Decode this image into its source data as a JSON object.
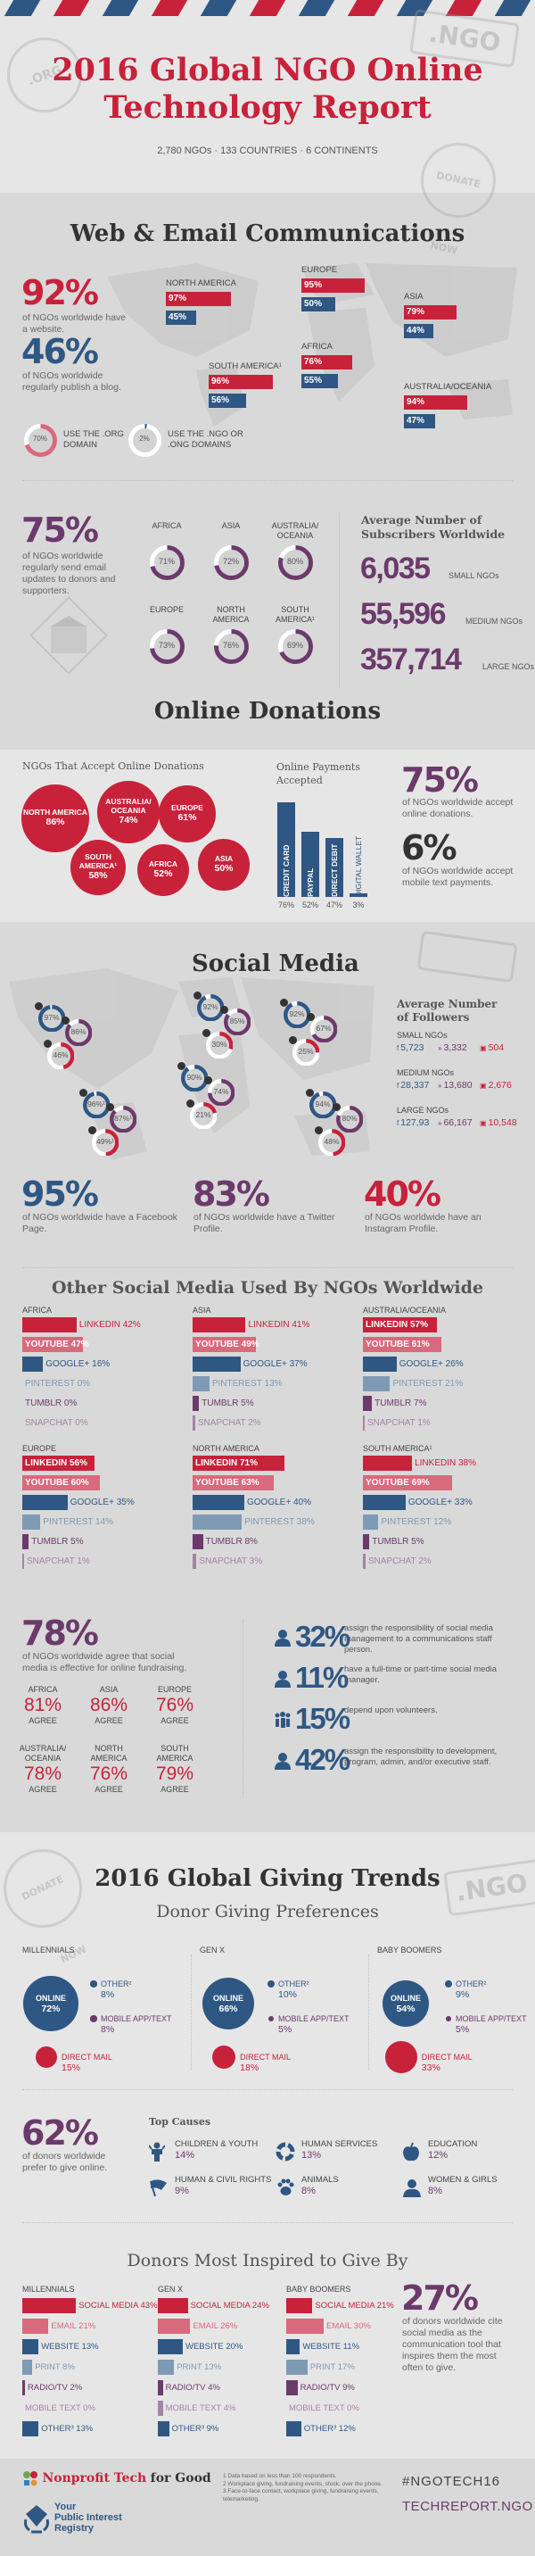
{
  "header": {
    "title_line1": "2016 Global NGO Online",
    "title_line2": "Technology Report",
    "subtitle": "2,780 NGOs · 133 COUNTRIES · 6 CONTINENTS",
    "stamps": {
      "org": ".ORG",
      "ngo": ".NGO",
      "donate": "DONATE NOW"
    }
  },
  "web": {
    "title": "Web & Email Communications",
    "website_pct": "92%",
    "website_desc": "of NGOs worldwide have a website.",
    "blog_pct": "46%",
    "blog_desc": "of NGOs worldwide regularly publish a blog.",
    "regions": [
      {
        "name": "NORTH AMERICA",
        "website": 97,
        "blog": 45,
        "website_label": "97%",
        "blog_label": "45%"
      },
      {
        "name": "EUROPE",
        "website": 95,
        "blog": 50,
        "website_label": "95%",
        "blog_label": "50%"
      },
      {
        "name": "ASIA",
        "website": 79,
        "blog": 44,
        "website_label": "79%",
        "blog_label": "44%"
      },
      {
        "name": "SOUTH AMERICA¹",
        "website": 96,
        "blog": 56,
        "website_label": "96%",
        "blog_label": "56%"
      },
      {
        "name": "AFRICA",
        "website": 76,
        "blog": 55,
        "website_label": "76%",
        "blog_label": "55%"
      },
      {
        "name": "AUSTRALIA/OCEANIA",
        "website": 94,
        "blog": 47,
        "website_label": "94%",
        "blog_label": "47%"
      }
    ],
    "domains": [
      {
        "pct": 70,
        "label_pct": "70%",
        "text_line1": "USE THE .ORG",
        "text_line2": "DOMAIN"
      },
      {
        "pct": 2,
        "label_pct": "2%",
        "text_line1": "USE THE .NGO OR",
        "text_line2": ".ONG DOMAINS"
      }
    ],
    "email_pct": "75%",
    "email_desc": "of NGOs worldwide regularly send email updates to donors and supporters.",
    "email_regions": [
      {
        "name_line1": "",
        "name_line2": "AFRICA",
        "pct": 71,
        "label": "71%"
      },
      {
        "name_line1": "",
        "name_line2": "ASIA",
        "pct": 72,
        "label": "72%"
      },
      {
        "name_line1": "AUSTRALIA/",
        "name_line2": "OCEANIA",
        "pct": 80,
        "label": "80%"
      },
      {
        "name_line1": "",
        "name_line2": "EUROPE",
        "pct": 73,
        "label": "73%"
      },
      {
        "name_line1": "NORTH",
        "name_line2": "AMERICA",
        "pct": 76,
        "label": "76%"
      },
      {
        "name_line1": "SOUTH",
        "name_line2": "AMERICA¹",
        "pct": 69,
        "label": "69%"
      }
    ],
    "subscribers_title_line1": "Average Number of",
    "subscribers_title_line2": "Subscribers Worldwide",
    "subscribers": [
      {
        "value": "6,035",
        "label": "SMALL NGOs"
      },
      {
        "value": "55,596",
        "label": "MEDIUM NGOs"
      },
      {
        "value": "357,714",
        "label": "LARGE NGOs"
      }
    ]
  },
  "donations": {
    "title": "Online Donations",
    "bubbles_title": "NGOs That Accept Online Donations",
    "bubbles": [
      {
        "line1": "NORTH AMERICA",
        "line2": "",
        "pct": "86%",
        "value": 86
      },
      {
        "line1": "AUSTRALIA/",
        "line2": "OCEANIA",
        "pct": "74%",
        "value": 74
      },
      {
        "line1": "EUROPE",
        "line2": "",
        "pct": "61%",
        "value": 61
      },
      {
        "line1": "SOUTH",
        "line2": "AMERICA¹",
        "pct": "58%",
        "value": 58
      },
      {
        "line1": "AFRICA",
        "line2": "",
        "pct": "52%",
        "value": 52
      },
      {
        "line1": "ASIA",
        "line2": "",
        "pct": "50%",
        "value": 50
      }
    ],
    "payments_title_line1": "Online Payments",
    "payments_title_line2": "Accepted",
    "payments": [
      {
        "name": "CREDIT CARD",
        "value": 76,
        "label": "76%"
      },
      {
        "name": "PAYPAL",
        "value": 52,
        "label": "52%"
      },
      {
        "name": "DIRECT DEBIT",
        "value": 47,
        "label": "47%"
      },
      {
        "name": "DIGITAL WALLET",
        "value": 3,
        "label": "3%"
      }
    ],
    "accept_pct": "75%",
    "accept_desc": "of NGOs worldwide accept online donations.",
    "mobile_pct": "6%",
    "mobile_desc": "of NGOs worldwide accept mobile text payments."
  },
  "social": {
    "title": "Social Media",
    "regions": [
      {
        "facebook": 97,
        "twitter": 86,
        "instagram": 46,
        "fb_label": "97%",
        "tw_label": "86%",
        "ig_label": "46%"
      },
      {
        "facebook": 92,
        "twitter": 85,
        "instagram": 30,
        "fb_label": "92%",
        "tw_label": "85%",
        "ig_label": "30%"
      },
      {
        "facebook": 92,
        "twitter": 67,
        "instagram": 25,
        "fb_label": "92%",
        "tw_label": "67%",
        "ig_label": "25%"
      },
      {
        "facebook": 96,
        "twitter": 87,
        "instagram": 49,
        "fb_label": "96%¹",
        "tw_label": "87%¹",
        "ig_label": "49%¹"
      },
      {
        "facebook": 90,
        "twitter": 74,
        "instagram": 21,
        "fb_label": "90%",
        "tw_label": "74%",
        "ig_label": "21%"
      },
      {
        "facebook": 94,
        "twitter": 80,
        "instagram": 48,
        "fb_label": "94%",
        "tw_label": "80%",
        "ig_label": "48%"
      }
    ],
    "followers_title_line1": "Average Number",
    "followers_title_line2": "of Followers",
    "followers": [
      {
        "size": "SMALL NGOs",
        "facebook": "5,723",
        "twitter": "3,332",
        "instagram": "504"
      },
      {
        "size": "MEDIUM NGOs",
        "facebook": "28,337",
        "twitter": "13,680",
        "instagram": "2,676"
      },
      {
        "size": "LARGE NGOs",
        "facebook": "127,93",
        "twitter": "66,167",
        "instagram": "10,548"
      }
    ],
    "facebook_pct": "95%",
    "facebook_desc": "of NGOs worldwide have a Facebook Page.",
    "twitter_pct": "83%",
    "twitter_desc": "of NGOs worldwide have a Twitter Profile.",
    "instagram_pct": "40%",
    "instagram_desc": "of NGOs worldwide have an Instagram Profile.",
    "other_title": "Other Social Media Used By NGOs Worldwide",
    "other": [
      {
        "region": "AFRICA",
        "items": [
          {
            "name": "LINKEDIN",
            "value": 42,
            "label": "LINKEDIN 42%"
          },
          {
            "name": "YOUTUBE",
            "value": 47,
            "label": "YOUTUBE 47%"
          },
          {
            "name": "GOOGLE+",
            "value": 16,
            "label": "GOOGLE+ 16%"
          },
          {
            "name": "PINTEREST",
            "value": 0,
            "label": "PINTEREST 0%"
          },
          {
            "name": "TUMBLR",
            "value": 0,
            "label": "TUMBLR 0%"
          },
          {
            "name": "SNAPCHAT",
            "value": 0,
            "label": "SNAPCHAT 0%"
          }
        ]
      },
      {
        "region": "ASIA",
        "items": [
          {
            "name": "LINKEDIN",
            "value": 41,
            "label": "LINKEDIN 41%"
          },
          {
            "name": "YOUTUBE",
            "value": 49,
            "label": "YOUTUBE 49%"
          },
          {
            "name": "GOOGLE+",
            "value": 37,
            "label": "GOOGLE+ 37%"
          },
          {
            "name": "PINTEREST",
            "value": 13,
            "label": "PINTEREST 13%"
          },
          {
            "name": "TUMBLR",
            "value": 5,
            "label": "TUMBLR 5%"
          },
          {
            "name": "SNAPCHAT",
            "value": 2,
            "label": "SNAPCHAT 2%"
          }
        ]
      },
      {
        "region": "AUSTRALIA/OCEANIA",
        "items": [
          {
            "name": "LINKEDIN",
            "value": 57,
            "label": "LINKEDIN 57%"
          },
          {
            "name": "YOUTUBE",
            "value": 61,
            "label": "YOUTUBE 61%"
          },
          {
            "name": "GOOGLE+",
            "value": 26,
            "label": "GOOGLE+ 26%"
          },
          {
            "name": "PINTEREST",
            "value": 21,
            "label": "PINTEREST 21%"
          },
          {
            "name": "TUMBLR",
            "value": 7,
            "label": "TUMBLR 7%"
          },
          {
            "name": "SNAPCHAT",
            "value": 1,
            "label": "SNAPCHAT 1%"
          }
        ]
      },
      {
        "region": "EUROPE",
        "items": [
          {
            "name": "LINKEDIN",
            "value": 56,
            "label": "LINKEDIN 56%"
          },
          {
            "name": "YOUTUBE",
            "value": 60,
            "label": "YOUTUBE 60%"
          },
          {
            "name": "GOOGLE+",
            "value": 35,
            "label": "GOOGLE+ 35%"
          },
          {
            "name": "PINTEREST",
            "value": 14,
            "label": "PINTEREST 14%"
          },
          {
            "name": "TUMBLR",
            "value": 5,
            "label": "TUMBLR 5%"
          },
          {
            "name": "SNAPCHAT",
            "value": 1,
            "label": "SNAPCHAT 1%"
          }
        ]
      },
      {
        "region": "NORTH AMERICA",
        "items": [
          {
            "name": "LINKEDIN",
            "value": 71,
            "label": "LINKEDIN 71%"
          },
          {
            "name": "YOUTUBE",
            "value": 63,
            "label": "YOUTUBE 63%"
          },
          {
            "name": "GOOGLE+",
            "value": 40,
            "label": "GOOGLE+ 40%"
          },
          {
            "name": "PINTEREST",
            "value": 38,
            "label": "PINTEREST 38%"
          },
          {
            "name": "TUMBLR",
            "value": 8,
            "label": "TUMBLR 8%"
          },
          {
            "name": "SNAPCHAT",
            "value": 3,
            "label": "SNAPCHAT 3%"
          }
        ]
      },
      {
        "region": "SOUTH AMERICA¹",
        "items": [
          {
            "name": "LINKEDIN",
            "value": 38,
            "label": "LINKEDIN 38%"
          },
          {
            "name": "YOUTUBE",
            "value": 69,
            "label": "YOUTUBE 69%"
          },
          {
            "name": "GOOGLE+",
            "value": 33,
            "label": "GOOGLE+ 33%"
          },
          {
            "name": "PINTEREST",
            "value": 12,
            "label": "PINTEREST 12%"
          },
          {
            "name": "TUMBLR",
            "value": 5,
            "label": "TUMBLR 5%"
          },
          {
            "name": "SNAPCHAT",
            "value": 2,
            "label": "SNAPCHAT 2%"
          }
        ]
      }
    ],
    "effective_pct": "78%",
    "effective_desc": "of NGOs worldwide agree that social media is effective for online fundraising.",
    "agree": [
      {
        "line1": "",
        "line2": "AFRICA",
        "pct": "81%",
        "word": "AGREE"
      },
      {
        "line1": "",
        "line2": "ASIA",
        "pct": "86%",
        "word": "AGREE"
      },
      {
        "line1": "",
        "line2": "EUROPE",
        "pct": "76%",
        "word": "AGREE"
      },
      {
        "line1": "AUSTRALIA/",
        "line2": "OCEANIA",
        "pct": "78%",
        "word": "AGREE"
      },
      {
        "line1": "NORTH",
        "line2": "AMERICA",
        "pct": "76%",
        "word": "AGREE"
      },
      {
        "line1": "SOUTH",
        "line2": "AMERICA",
        "pct": "79%",
        "word": "AGREE"
      }
    ],
    "staffing": [
      {
        "icon": "person-icon",
        "pct": "32%",
        "text": "assign the responsibility of social media management to a communications staff person."
      },
      {
        "icon": "person-icon",
        "pct": "11%",
        "text": "have a full-time or part-time social media manager."
      },
      {
        "icon": "group-icon",
        "pct": "15%",
        "text": "depend upon volunteers."
      },
      {
        "icon": "person-icon",
        "pct": "42%",
        "text": "assign the responsibility to development, program, admin, and/or executive staff."
      }
    ]
  },
  "giving": {
    "title": "2016 Global Giving Trends",
    "prefs_title": "Donor Giving Preferences",
    "generations": [
      {
        "name": "MILLENNIALS",
        "online": 72,
        "online_label": "72%",
        "other": "8%",
        "mobile": "8%",
        "direct": "15%",
        "other_v": 8,
        "mobile_v": 8,
        "direct_v": 15
      },
      {
        "name": "GEN X",
        "online": 66,
        "online_label": "66%",
        "other": "10%",
        "mobile": "5%",
        "direct": "18%",
        "other_v": 10,
        "mobile_v": 5,
        "direct_v": 18
      },
      {
        "name": "BABY BOOMERS",
        "online": 54,
        "online_label": "54%",
        "other": "9%",
        "mobile": "5%",
        "direct": "33%",
        "other_v": 9,
        "mobile_v": 5,
        "direct_v": 33
      }
    ],
    "online_word": "ONLINE",
    "other_word": "OTHER²",
    "mobile_word": "MOBILE APP/TEXT",
    "direct_word": "DIRECT MAIL",
    "online_pref_pct": "62%",
    "online_pref_desc": "of donors worldwide prefer to give online.",
    "causes_title": "Top Causes",
    "causes": [
      {
        "icon": "child-icon",
        "name": "CHILDREN & YOUTH",
        "pct": "14%"
      },
      {
        "icon": "lifebuoy-icon",
        "name": "HUMAN SERVICES",
        "pct": "13%"
      },
      {
        "icon": "apple-icon",
        "name": "EDUCATION",
        "pct": "12%"
      },
      {
        "icon": "flag-icon",
        "name": "HUMAN & CIVIL RIGHTS",
        "pct": "9%"
      },
      {
        "icon": "paw-icon",
        "name": "ANIMALS",
        "pct": "8%"
      },
      {
        "icon": "woman-icon",
        "name": "WOMEN & GIRLS",
        "pct": "8%"
      }
    ],
    "inspired_title": "Donors Most Inspired to Give By",
    "inspired": [
      {
        "name": "MILLENNIALS",
        "items": [
          {
            "label": "SOCIAL MEDIA 43%",
            "value": 43
          },
          {
            "label": "EMAIL 21%",
            "value": 21
          },
          {
            "label": "WEBSITE 13%",
            "value": 13
          },
          {
            "label": "PRINT 8%",
            "value": 8
          },
          {
            "label": "RADIO/TV 2%",
            "value": 2
          },
          {
            "label": "MOBILE TEXT 0%",
            "value": 0
          },
          {
            "label": "OTHER³ 13%",
            "value": 13
          }
        ]
      },
      {
        "name": "GEN X",
        "items": [
          {
            "label": "SOCIAL MEDIA 24%",
            "value": 24
          },
          {
            "label": "EMAIL 26%",
            "value": 26
          },
          {
            "label": "WEBSITE 20%",
            "value": 20
          },
          {
            "label": "PRINT 13%",
            "value": 13
          },
          {
            "label": "RADIO/TV 4%",
            "value": 4
          },
          {
            "label": "MOBILE TEXT 4%",
            "value": 4
          },
          {
            "label": "OTHER³ 9%",
            "value": 9
          }
        ]
      },
      {
        "name": "BABY BOOMERS",
        "items": [
          {
            "label": "SOCIAL MEDIA 21%",
            "value": 21
          },
          {
            "label": "EMAIL 30%",
            "value": 30
          },
          {
            "label": "WEBSITE 11%",
            "value": 11
          },
          {
            "label": "PRINT 17%",
            "value": 17
          },
          {
            "label": "RADIO/TV 9%",
            "value": 9
          },
          {
            "label": "MOBILE TEXT 0%",
            "value": 0
          },
          {
            "label": "OTHER³ 12%",
            "value": 12
          }
        ]
      }
    ],
    "social_cite_pct": "27%",
    "social_cite_desc": "of donors worldwide cite social media as the communication tool that inspires them the most often to give."
  },
  "footer": {
    "ntfg_part1": "Nonprofit Tech",
    "ntfg_part2": "for Good",
    "pir_line1": "Your",
    "pir_line2": "Public Interest",
    "pir_line3": "Registry",
    "notes": [
      "1 Data based on less than 100 respondents.",
      "2 Workplace giving, fundraising events, stock, over the phone.",
      "3 Face-to-face contact, workplace giving, fundraising events, telemarketing."
    ],
    "hashtag": "#NGOTECH16",
    "url": "TECHREPORT.NGO"
  },
  "colors": {
    "red": "#c8223b",
    "pink": "#d9697c",
    "blue": "#2f5784",
    "lightblue": "#7f9ab4",
    "purple": "#6b3a6b",
    "lightpurple": "#a484a4",
    "grey": "#555555"
  }
}
